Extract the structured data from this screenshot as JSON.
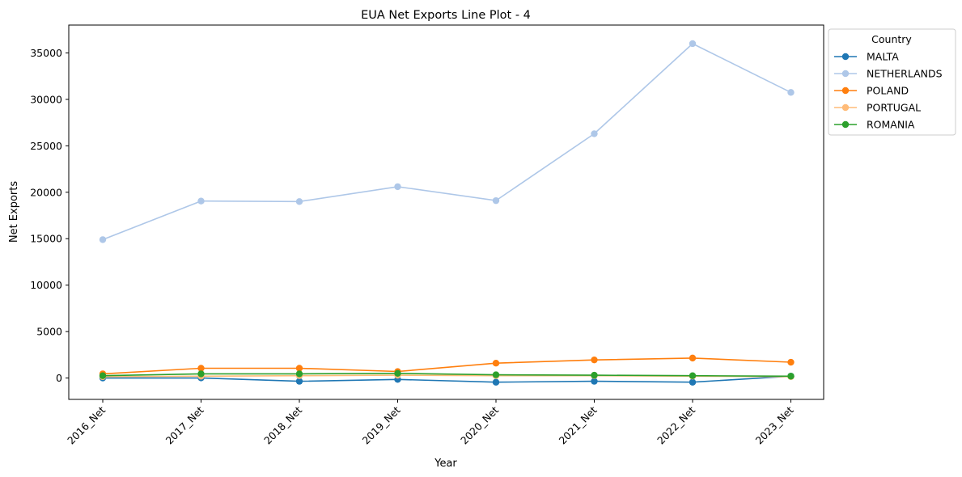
{
  "chart_data": {
    "type": "line",
    "title": "EUA Net Exports Line Plot - 4",
    "xlabel": "Year",
    "ylabel": "Net Exports",
    "categories": [
      "2016_Net",
      "2017_Net",
      "2018_Net",
      "2019_Net",
      "2020_Net",
      "2021_Net",
      "2022_Net",
      "2023_Net"
    ],
    "ylim": [
      -2300,
      38000
    ],
    "yticks": [
      0,
      5000,
      10000,
      15000,
      20000,
      25000,
      30000,
      35000
    ],
    "grid": false,
    "legend": {
      "title": "Country",
      "placement": "outside-top-right"
    },
    "series": [
      {
        "name": "MALTA",
        "color": "#1f77b4",
        "values": [
          0,
          10,
          -350,
          -150,
          -450,
          -350,
          -450,
          200
        ]
      },
      {
        "name": "NETHERLANDS",
        "color": "#aec7e8",
        "values": [
          14900,
          19050,
          19000,
          20600,
          19100,
          26300,
          36000,
          30750
        ]
      },
      {
        "name": "POLAND",
        "color": "#ff7f0e",
        "values": [
          450,
          1050,
          1050,
          700,
          1600,
          1950,
          2150,
          1700
        ]
      },
      {
        "name": "PORTUGAL",
        "color": "#ffbb78",
        "values": [
          150,
          200,
          250,
          300,
          250,
          250,
          200,
          150
        ]
      },
      {
        "name": "ROMANIA",
        "color": "#2ca02c",
        "values": [
          250,
          450,
          450,
          500,
          350,
          300,
          250,
          200
        ]
      }
    ]
  }
}
